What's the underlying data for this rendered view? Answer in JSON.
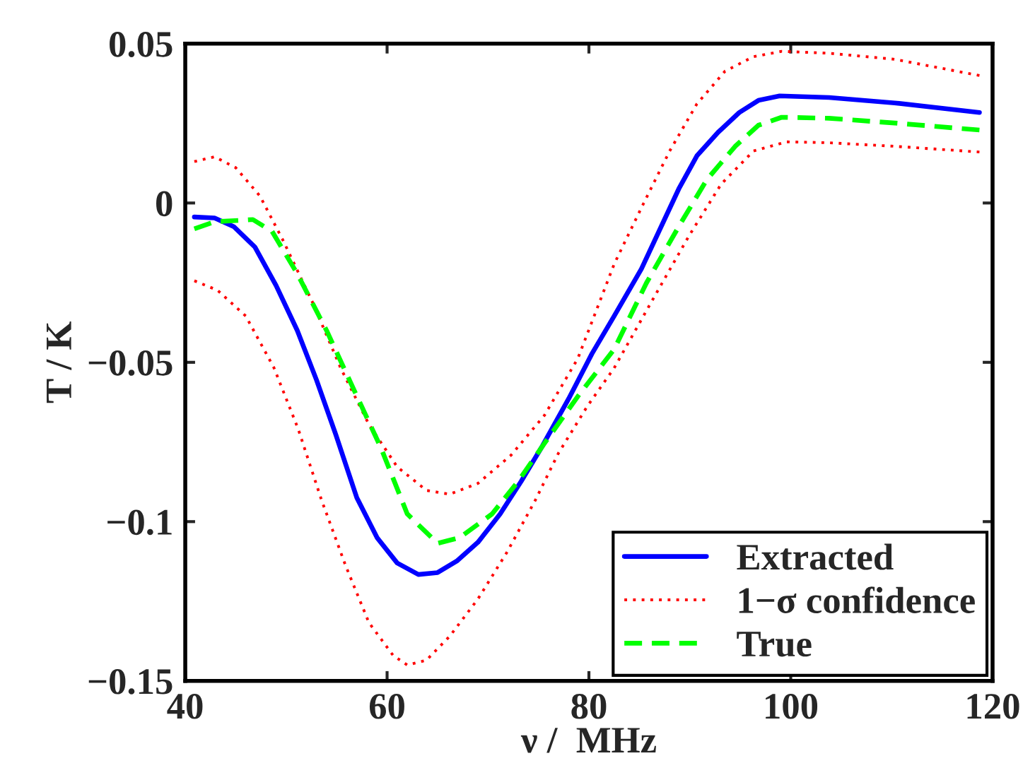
{
  "chart_data": {
    "type": "line",
    "xlabel": "ν /  MHz",
    "ylabel": "T / K",
    "xlim": [
      40,
      120
    ],
    "xticks": [
      40,
      60,
      80,
      100,
      120
    ],
    "ylim": [
      -0.15,
      0.05
    ],
    "yticks": [
      {
        "value": -0.15,
        "label": "−0.15"
      },
      {
        "value": -0.1,
        "label": "−0.1"
      },
      {
        "value": -0.05,
        "label": "−0.05"
      },
      0,
      0.05
    ],
    "grid": false,
    "legend": "bottom right",
    "series": [
      {
        "name": "Extracted",
        "color": "#0000ff",
        "line_style": "solid",
        "x": [
          40.9,
          42.9,
          44.8,
          46.9,
          49.0,
          51.1,
          53.0,
          54.9,
          57.0,
          59.0,
          61.0,
          63.1,
          65.0,
          66.9,
          69.0,
          71.2,
          73.3,
          75.4,
          78.0,
          80.3,
          82.5,
          85.2,
          88.9,
          90.7,
          92.8,
          94.9,
          96.8,
          98.9,
          103.8,
          110.3,
          118.7
        ],
        "values": [
          -0.0044,
          -0.0047,
          -0.0074,
          -0.0138,
          -0.0259,
          -0.04,
          -0.0555,
          -0.0725,
          -0.0925,
          -0.105,
          -0.113,
          -0.1166,
          -0.116,
          -0.1124,
          -0.1065,
          -0.0976,
          -0.0873,
          -0.0762,
          -0.0614,
          -0.0473,
          -0.0355,
          -0.0207,
          0.0044,
          0.0148,
          0.0222,
          0.0284,
          0.0322,
          0.0336,
          0.0331,
          0.0314,
          0.0284
        ]
      },
      {
        "name": "1−σ confidence",
        "color": "#ff0000",
        "line_style": "dotted",
        "x": [
          40.9,
          42.9,
          45.0,
          47.4,
          49.7,
          52.6,
          55.4,
          58.2,
          61.0,
          63.9,
          66.2,
          69.0,
          72.3,
          75.6,
          78.9,
          82.5,
          85.2,
          88.0,
          90.7,
          93.5,
          96.3,
          99.1,
          103.8,
          110.3,
          118.7
        ],
        "values": [
          0.013,
          0.0145,
          0.0111,
          0.0022,
          -0.0118,
          -0.0311,
          -0.0518,
          -0.0695,
          -0.0828,
          -0.0902,
          -0.0914,
          -0.088,
          -0.0791,
          -0.0666,
          -0.0488,
          -0.0192,
          -0.0015,
          0.0163,
          0.0311,
          0.0414,
          0.0459,
          0.0476,
          0.047,
          0.0451,
          0.04
        ]
      },
      {
        "color": "#ff0000",
        "line_style": "dotted",
        "x": [
          40.9,
          43.2,
          46.0,
          48.8,
          51.2,
          53.5,
          55.9,
          58.2,
          60.6,
          62.0,
          63.9,
          66.2,
          69.0,
          71.9,
          74.7,
          77.0,
          79.8,
          82.5,
          86.2,
          89.9,
          93.1,
          96.3,
          99.6,
          103.8,
          110.3,
          118.7
        ],
        "values": [
          -0.0244,
          -0.0274,
          -0.0355,
          -0.0518,
          -0.071,
          -0.0932,
          -0.1139,
          -0.1317,
          -0.142,
          -0.145,
          -0.1435,
          -0.136,
          -0.1243,
          -0.1095,
          -0.0932,
          -0.0784,
          -0.064,
          -0.0518,
          -0.031,
          -0.0104,
          0.0059,
          0.0163,
          0.0192,
          0.0189,
          0.0178,
          0.016
        ]
      },
      {
        "name": "True",
        "color": "#00ff00",
        "line_style": "dashed",
        "x": [
          40.9,
          42.9,
          46.7,
          48.6,
          51.1,
          54.0,
          56.8,
          59.4,
          62.0,
          65.0,
          67.2,
          70.4,
          73.0,
          75.6,
          78.9,
          82.5,
          85.7,
          88.9,
          91.7,
          94.5,
          96.8,
          99.1,
          103.8,
          110.3,
          118.7
        ],
        "values": [
          -0.0081,
          -0.0059,
          -0.0052,
          -0.0089,
          -0.0222,
          -0.04,
          -0.0592,
          -0.0769,
          -0.0976,
          -0.1068,
          -0.105,
          -0.0976,
          -0.0873,
          -0.0754,
          -0.0607,
          -0.0459,
          -0.0251,
          -0.0074,
          0.0074,
          0.0178,
          0.0244,
          0.0269,
          0.0266,
          0.0251,
          0.0229
        ]
      }
    ]
  }
}
